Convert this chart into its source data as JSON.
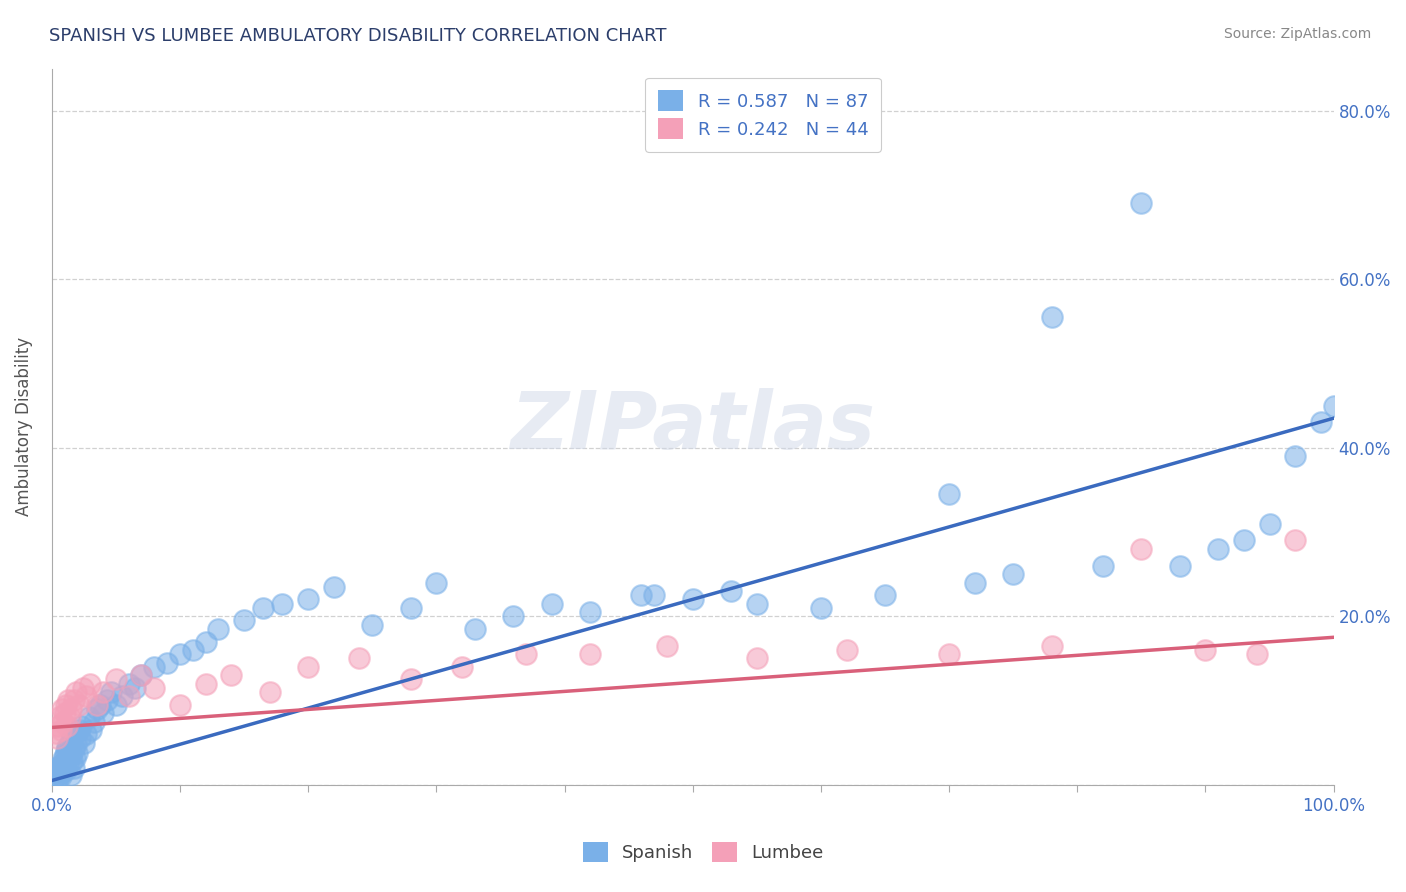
{
  "title": "SPANISH VS LUMBEE AMBULATORY DISABILITY CORRELATION CHART",
  "source": "Source: ZipAtlas.com",
  "ylabel": "Ambulatory Disability",
  "xlim": [
    0.0,
    1.0
  ],
  "ylim": [
    0.0,
    0.85
  ],
  "spanish_R": 0.587,
  "spanish_N": 87,
  "lumbee_R": 0.242,
  "lumbee_N": 44,
  "spanish_color": "#7ab0e8",
  "lumbee_color": "#f4a0b8",
  "spanish_line_color": "#3a6abf",
  "lumbee_line_color": "#d9607a",
  "background_color": "#ffffff",
  "grid_color": "#cccccc",
  "title_color": "#2c3e6b",
  "legend_text_color": "#4472c4",
  "watermark_text": "ZIPatlas",
  "spanish_line_x0": 0.0,
  "spanish_line_y0": 0.005,
  "spanish_line_x1": 1.0,
  "spanish_line_y1": 0.435,
  "lumbee_line_x0": 0.0,
  "lumbee_line_y0": 0.068,
  "lumbee_line_x1": 1.0,
  "lumbee_line_y1": 0.175,
  "spanish_x": [
    0.003,
    0.004,
    0.005,
    0.005,
    0.006,
    0.006,
    0.007,
    0.007,
    0.008,
    0.008,
    0.009,
    0.009,
    0.01,
    0.01,
    0.011,
    0.011,
    0.012,
    0.012,
    0.013,
    0.013,
    0.014,
    0.015,
    0.015,
    0.016,
    0.016,
    0.017,
    0.017,
    0.018,
    0.018,
    0.019,
    0.02,
    0.021,
    0.022,
    0.023,
    0.025,
    0.027,
    0.029,
    0.031,
    0.033,
    0.035,
    0.038,
    0.04,
    0.043,
    0.046,
    0.05,
    0.055,
    0.06,
    0.065,
    0.07,
    0.08,
    0.09,
    0.1,
    0.11,
    0.12,
    0.13,
    0.15,
    0.165,
    0.18,
    0.2,
    0.22,
    0.25,
    0.28,
    0.3,
    0.33,
    0.36,
    0.39,
    0.42,
    0.46,
    0.5,
    0.55,
    0.6,
    0.65,
    0.7,
    0.72,
    0.75,
    0.78,
    0.82,
    0.85,
    0.88,
    0.91,
    0.93,
    0.95,
    0.97,
    0.99,
    1.0,
    0.47,
    0.53
  ],
  "spanish_y": [
    0.01,
    0.015,
    0.008,
    0.02,
    0.012,
    0.022,
    0.01,
    0.018,
    0.025,
    0.015,
    0.03,
    0.02,
    0.035,
    0.025,
    0.04,
    0.018,
    0.03,
    0.045,
    0.025,
    0.038,
    0.05,
    0.012,
    0.035,
    0.028,
    0.055,
    0.02,
    0.042,
    0.032,
    0.06,
    0.048,
    0.038,
    0.065,
    0.055,
    0.07,
    0.05,
    0.06,
    0.08,
    0.065,
    0.075,
    0.09,
    0.095,
    0.085,
    0.1,
    0.11,
    0.095,
    0.105,
    0.12,
    0.115,
    0.13,
    0.14,
    0.145,
    0.155,
    0.16,
    0.17,
    0.185,
    0.195,
    0.21,
    0.215,
    0.22,
    0.235,
    0.19,
    0.21,
    0.24,
    0.185,
    0.2,
    0.215,
    0.205,
    0.225,
    0.22,
    0.215,
    0.21,
    0.225,
    0.345,
    0.24,
    0.25,
    0.555,
    0.26,
    0.69,
    0.26,
    0.28,
    0.29,
    0.31,
    0.39,
    0.43,
    0.45,
    0.225,
    0.23
  ],
  "lumbee_x": [
    0.003,
    0.004,
    0.005,
    0.006,
    0.007,
    0.008,
    0.009,
    0.01,
    0.011,
    0.012,
    0.013,
    0.014,
    0.015,
    0.017,
    0.019,
    0.021,
    0.024,
    0.027,
    0.03,
    0.035,
    0.04,
    0.05,
    0.06,
    0.07,
    0.08,
    0.1,
    0.12,
    0.14,
    0.17,
    0.2,
    0.24,
    0.28,
    0.32,
    0.37,
    0.42,
    0.48,
    0.55,
    0.62,
    0.7,
    0.78,
    0.85,
    0.9,
    0.94,
    0.97
  ],
  "lumbee_y": [
    0.062,
    0.055,
    0.07,
    0.08,
    0.065,
    0.09,
    0.075,
    0.085,
    0.095,
    0.07,
    0.1,
    0.08,
    0.09,
    0.1,
    0.11,
    0.095,
    0.115,
    0.105,
    0.12,
    0.095,
    0.11,
    0.125,
    0.105,
    0.13,
    0.115,
    0.095,
    0.12,
    0.13,
    0.11,
    0.14,
    0.15,
    0.125,
    0.14,
    0.155,
    0.155,
    0.165,
    0.15,
    0.16,
    0.155,
    0.165,
    0.28,
    0.16,
    0.155,
    0.29
  ]
}
